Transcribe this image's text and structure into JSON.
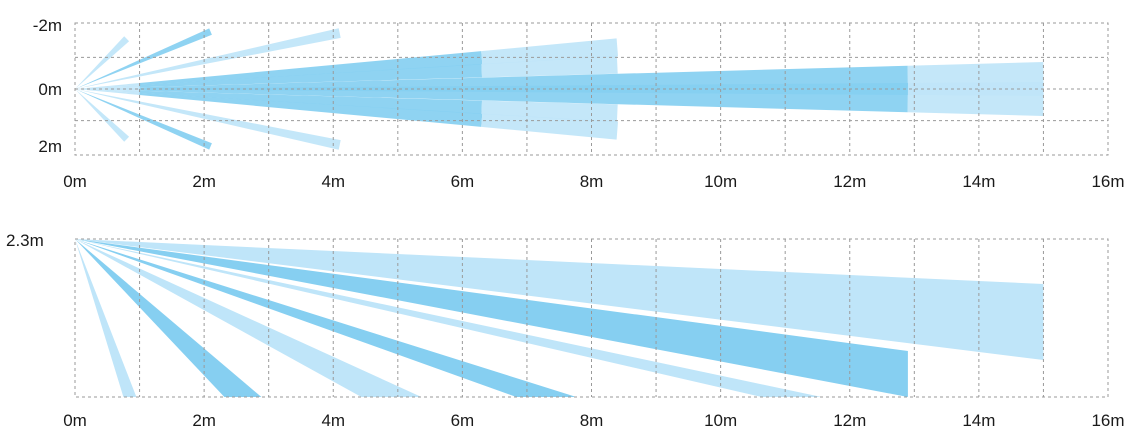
{
  "chart_data": [
    {
      "type": "diagram",
      "view": "top",
      "x_ticks": [
        "0m",
        "2m",
        "4m",
        "6m",
        "8m",
        "10m",
        "12m",
        "14m",
        "16m"
      ],
      "y_ticks": [
        "-2m",
        "0m",
        "2m"
      ],
      "xlim": [
        0,
        16
      ],
      "ylim": [
        -2.3,
        2.3
      ],
      "colors": {
        "dark": "#86cff1",
        "light": "#bfe5f9"
      },
      "beams": [
        {
          "y_end": -1.75,
          "x_segments": [
            [
              0,
              0.8,
              "light"
            ]
          ]
        },
        {
          "y_end": 1.75,
          "x_segments": [
            [
              0,
              0.8,
              "light"
            ]
          ]
        },
        {
          "y_end": -2.0,
          "x_segments": [
            [
              0,
              2.1,
              "dark"
            ]
          ]
        },
        {
          "y_end": 2.0,
          "x_segments": [
            [
              0,
              2.1,
              "dark"
            ]
          ]
        },
        {
          "y_end": -1.95,
          "x_segments": [
            [
              0,
              4.1,
              "light"
            ]
          ]
        },
        {
          "y_end": 1.95,
          "x_segments": [
            [
              0,
              4.1,
              "light"
            ]
          ]
        },
        {
          "y_end": -1.45,
          "x_segments": [
            [
              0,
              1.0,
              "light"
            ],
            [
              1.0,
              6.3,
              "dark"
            ],
            [
              6.3,
              8.4,
              "light"
            ]
          ]
        },
        {
          "y_end": 1.45,
          "x_segments": [
            [
              0,
              1.0,
              "light"
            ],
            [
              1.0,
              6.3,
              "dark"
            ],
            [
              6.3,
              8.4,
              "light"
            ]
          ]
        },
        {
          "y_end": -0.85,
          "x_segments": [
            [
              0,
              1.0,
              "light"
            ],
            [
              1.0,
              6.3,
              "dark"
            ],
            [
              6.3,
              8.4,
              "light"
            ]
          ]
        },
        {
          "y_end": 0.85,
          "x_segments": [
            [
              0,
              1.0,
              "light"
            ],
            [
              1.0,
              6.3,
              "dark"
            ],
            [
              6.3,
              8.4,
              "light"
            ]
          ]
        },
        {
          "y_end": -0.35,
          "x_segments": [
            [
              0,
              1.0,
              "light"
            ],
            [
              1.0,
              12.9,
              "dark"
            ],
            [
              12.9,
              15.0,
              "light"
            ]
          ]
        },
        {
          "y_end": 0.35,
          "x_segments": [
            [
              0,
              1.0,
              "light"
            ],
            [
              1.0,
              12.9,
              "dark"
            ],
            [
              12.9,
              15.0,
              "light"
            ]
          ]
        }
      ]
    },
    {
      "type": "diagram",
      "view": "side",
      "x_ticks": [
        "0m",
        "2m",
        "4m",
        "6m",
        "8m",
        "10m",
        "12m",
        "14m",
        "16m"
      ],
      "y_ticks": [
        "2.3m"
      ],
      "xlim": [
        0,
        16
      ],
      "ylim": [
        0,
        2.3
      ],
      "colors": {
        "dark": "#86cff1",
        "light": "#bfe5f9"
      },
      "beams": [
        {
          "x_end": 0.85,
          "color": "light"
        },
        {
          "x_end": 2.6,
          "color": "dark"
        },
        {
          "x_end": 4.9,
          "color": "light"
        },
        {
          "x_end": 7.3,
          "color": "dark"
        },
        {
          "x_end": 11.1,
          "color": "light"
        },
        {
          "x_end": 12.9,
          "color": "dark"
        },
        {
          "x_end": 15.0,
          "color": "light"
        }
      ]
    }
  ]
}
